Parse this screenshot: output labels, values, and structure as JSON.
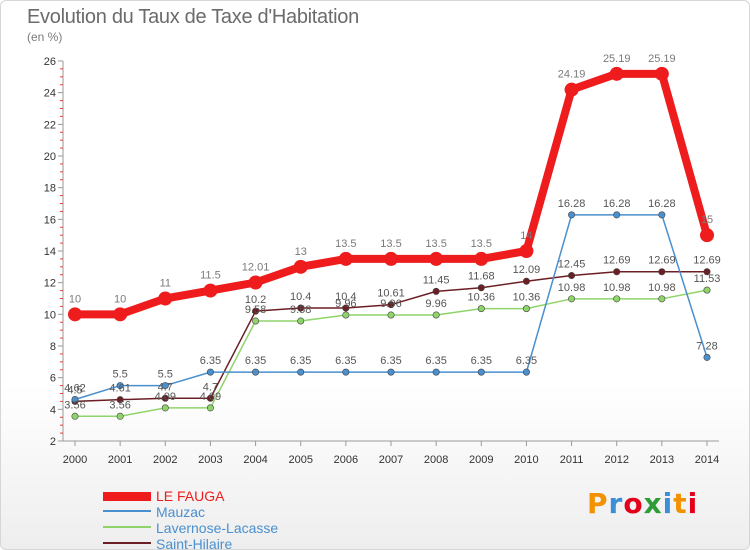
{
  "header": {
    "title": "Evolution du Taux de Taxe d'Habitation",
    "subtitle": "(en %)"
  },
  "logo": {
    "text": "Proxiti",
    "colors": [
      "#f39200",
      "#3b8fd6",
      "#e2001a",
      "#2e9d37",
      "#3b8fd6",
      "#f39200",
      "#e2001a"
    ]
  },
  "chart_data": {
    "type": "line",
    "x": [
      "2000",
      "2001",
      "2002",
      "2003",
      "2004",
      "2005",
      "2006",
      "2007",
      "2008",
      "2009",
      "2010",
      "2011",
      "2012",
      "2013",
      "2014"
    ],
    "ylim": [
      2,
      26
    ],
    "yticks": [
      "2",
      "4",
      "6",
      "8",
      "10",
      "12",
      "14",
      "16",
      "18",
      "20",
      "22",
      "24",
      "26"
    ],
    "grid": false,
    "legend_position": "bottom-left",
    "series": [
      {
        "name": "LE FAUGA",
        "color": "#ee1c1c",
        "label_color": "#7a7a7a",
        "values": [
          10,
          10,
          11,
          11.5,
          12.01,
          13,
          13.5,
          13.5,
          13.5,
          13.5,
          14,
          24.19,
          25.19,
          25.19,
          15
        ],
        "labels": [
          "10",
          "10",
          "11",
          "11.5",
          "12.01",
          "13",
          "13.5",
          "13.5",
          "13.5",
          "13.5",
          "14",
          "24.19",
          "25.19",
          "25.19",
          "15"
        ]
      },
      {
        "name": "Mauzac",
        "color": "#4a8fce",
        "label_color": "#555555",
        "values": [
          4.62,
          5.5,
          5.5,
          6.35,
          6.35,
          6.35,
          6.35,
          6.35,
          6.35,
          6.35,
          6.35,
          16.28,
          16.28,
          16.28,
          7.28
        ],
        "labels": [
          "4.62",
          "5.5",
          "5.5",
          "6.35",
          "6.35",
          "6.35",
          "6.35",
          "6.35",
          "6.35",
          "6.35",
          "6.35",
          "16.28",
          "16.28",
          "16.28",
          "7.28"
        ]
      },
      {
        "name": "Lavernose-Lacasse",
        "color": "#8fd46a",
        "label_color": "#555555",
        "values": [
          3.56,
          3.56,
          4.09,
          4.09,
          9.58,
          9.58,
          9.96,
          9.96,
          9.96,
          10.36,
          10.36,
          10.98,
          10.98,
          10.98,
          11.53
        ],
        "labels": [
          "3.56",
          "3.56",
          "4.09",
          "4.09",
          "9.58",
          "9.58",
          "9.96",
          "9.96",
          "9.96",
          "10.36",
          "10.36",
          "10.98",
          "10.98",
          "10.98",
          "11.53"
        ]
      },
      {
        "name": "Saint-Hilaire",
        "color": "#6b1f24",
        "label_color": "#555555",
        "values": [
          4.5,
          4.61,
          4.7,
          4.7,
          10.2,
          10.4,
          10.4,
          10.61,
          11.45,
          11.68,
          12.09,
          12.45,
          12.69,
          12.69,
          12.69
        ],
        "labels": [
          "4.5",
          "4.61",
          "4.7",
          "4.7",
          "10.2",
          "10.4",
          "10.4",
          "10.61",
          "11.45",
          "11.68",
          "12.09",
          "12.45",
          "12.69",
          "12.69",
          "12.69"
        ]
      }
    ]
  }
}
